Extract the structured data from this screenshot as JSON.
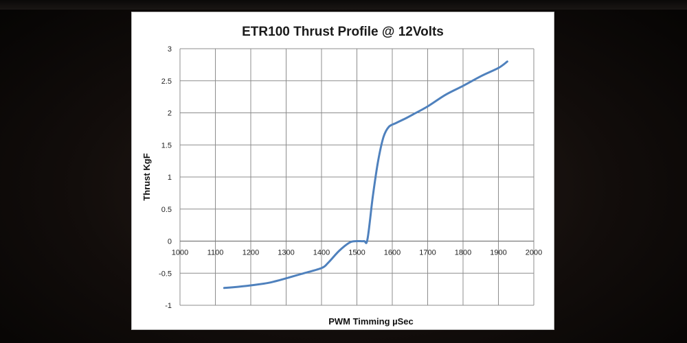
{
  "chart_data": {
    "type": "line",
    "title": "ETR100 Thrust Profile @ 12Volts",
    "xlabel": "PWM Timming µSec",
    "ylabel": "Thrust KgF",
    "xlim": [
      1000,
      2000
    ],
    "ylim": [
      -1,
      3
    ],
    "xticks": [
      1000,
      1100,
      1200,
      1300,
      1400,
      1500,
      1600,
      1700,
      1800,
      1900,
      2000
    ],
    "yticks": [
      -1,
      -0.5,
      0,
      0.5,
      1,
      1.5,
      2,
      2.5,
      3
    ],
    "xtick_labels": [
      "1000",
      "1100",
      "1200",
      "1300",
      "1400",
      "1500",
      "1600",
      "1700",
      "1800",
      "1900",
      "2000"
    ],
    "ytick_labels": [
      "-1",
      "-0.5",
      "0",
      "0.5",
      "1",
      "1.5",
      "2",
      "2.5",
      "3"
    ],
    "grid": true,
    "legend": "none",
    "series": [
      {
        "color": "#4f81bd",
        "x": [
          1125,
          1150,
          1200,
          1250,
          1300,
          1350,
          1400,
          1420,
          1450,
          1480,
          1500,
          1520,
          1530,
          1545,
          1560,
          1575,
          1590,
          1610,
          1640,
          1660,
          1700,
          1750,
          1800,
          1850,
          1900,
          1925
        ],
        "y": [
          -0.73,
          -0.72,
          -0.69,
          -0.65,
          -0.58,
          -0.5,
          -0.42,
          -0.33,
          -0.15,
          -0.02,
          0.0,
          0.0,
          0.03,
          0.7,
          1.25,
          1.62,
          1.78,
          1.84,
          1.92,
          1.98,
          2.1,
          2.28,
          2.42,
          2.57,
          2.7,
          2.8
        ]
      }
    ]
  }
}
